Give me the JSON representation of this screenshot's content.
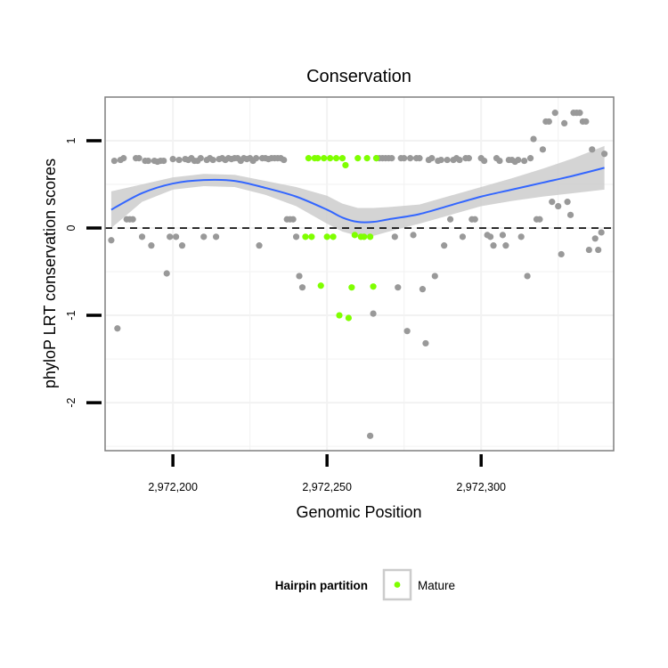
{
  "chart_data": {
    "type": "scatter",
    "title": "Conservation",
    "xlabel": "Genomic Position",
    "ylabel": "phyloP LRT conservation scores",
    "xlim": [
      2972178,
      2972343
    ],
    "ylim": [
      -2.55,
      1.5
    ],
    "x_ticks": [
      {
        "value": 2972200,
        "label": "2,972,200"
      },
      {
        "value": 2972250,
        "label": "2,972,250"
      },
      {
        "value": 2972300,
        "label": "2,972,300"
      }
    ],
    "y_ticks": [
      {
        "value": 1,
        "label": "1"
      },
      {
        "value": 0,
        "label": "0"
      },
      {
        "value": -1,
        "label": "-1"
      },
      {
        "value": -2,
        "label": "-2"
      }
    ],
    "reference_line": {
      "y": 0,
      "style": "dashed"
    },
    "grid": true,
    "colors": {
      "other_points": "#999999",
      "mature_points": "#7FFF00",
      "smooth_line": "#3366FF",
      "ribbon": "#CCCCCC",
      "panel_border": "#7f7f7f",
      "grid": "#f2f2f2"
    },
    "legend": {
      "title": "Hairpin partition",
      "position": "bottom",
      "entries": [
        {
          "label": "Mature",
          "series": "Mature"
        }
      ]
    },
    "series": [
      {
        "name": "Other",
        "points": [
          [
            2972180,
            -0.14
          ],
          [
            2972181,
            0.77
          ],
          [
            2972182,
            -1.15
          ],
          [
            2972183,
            0.78
          ],
          [
            2972184,
            0.8
          ],
          [
            2972185,
            0.1
          ],
          [
            2972186,
            0.1
          ],
          [
            2972187,
            0.1
          ],
          [
            2972188,
            0.8
          ],
          [
            2972189,
            0.8
          ],
          [
            2972190,
            -0.1
          ],
          [
            2972191,
            0.77
          ],
          [
            2972192,
            0.77
          ],
          [
            2972193,
            -0.2
          ],
          [
            2972194,
            0.77
          ],
          [
            2972195,
            0.76
          ],
          [
            2972196,
            0.77
          ],
          [
            2972197,
            0.77
          ],
          [
            2972198,
            -0.52
          ],
          [
            2972199,
            -0.1
          ],
          [
            2972200,
            0.79
          ],
          [
            2972201,
            -0.1
          ],
          [
            2972202,
            0.78
          ],
          [
            2972203,
            -0.2
          ],
          [
            2972204,
            0.79
          ],
          [
            2972205,
            0.78
          ],
          [
            2972206,
            0.8
          ],
          [
            2972207,
            0.77
          ],
          [
            2972208,
            0.77
          ],
          [
            2972209,
            0.8
          ],
          [
            2972210,
            -0.1
          ],
          [
            2972211,
            0.78
          ],
          [
            2972212,
            0.8
          ],
          [
            2972213,
            0.78
          ],
          [
            2972214,
            -0.1
          ],
          [
            2972215,
            0.79
          ],
          [
            2972216,
            0.8
          ],
          [
            2972217,
            0.78
          ],
          [
            2972218,
            0.8
          ],
          [
            2972219,
            0.79
          ],
          [
            2972220,
            0.8
          ],
          [
            2972221,
            0.8
          ],
          [
            2972222,
            0.77
          ],
          [
            2972223,
            0.8
          ],
          [
            2972224,
            0.79
          ],
          [
            2972225,
            0.8
          ],
          [
            2972226,
            0.77
          ],
          [
            2972227,
            0.8
          ],
          [
            2972228,
            -0.2
          ],
          [
            2972229,
            0.8
          ],
          [
            2972230,
            0.8
          ],
          [
            2972231,
            0.79
          ],
          [
            2972232,
            0.8
          ],
          [
            2972233,
            0.8
          ],
          [
            2972234,
            0.8
          ],
          [
            2972235,
            0.8
          ],
          [
            2972236,
            0.78
          ],
          [
            2972237,
            0.1
          ],
          [
            2972238,
            0.1
          ],
          [
            2972239,
            0.1
          ],
          [
            2972240,
            -0.1
          ],
          [
            2972241,
            -0.55
          ],
          [
            2972242,
            -0.68
          ],
          [
            2972264,
            -2.38
          ],
          [
            2972265,
            -0.98
          ],
          [
            2972266,
            0.8
          ],
          [
            2972267,
            0.8
          ],
          [
            2972268,
            0.8
          ],
          [
            2972269,
            0.8
          ],
          [
            2972270,
            0.8
          ],
          [
            2972271,
            0.8
          ],
          [
            2972272,
            -0.1
          ],
          [
            2972273,
            -0.68
          ],
          [
            2972274,
            0.8
          ],
          [
            2972275,
            0.8
          ],
          [
            2972276,
            -1.18
          ],
          [
            2972277,
            0.8
          ],
          [
            2972278,
            -0.08
          ],
          [
            2972279,
            0.8
          ],
          [
            2972280,
            0.8
          ],
          [
            2972281,
            -0.7
          ],
          [
            2972282,
            -1.32
          ],
          [
            2972283,
            0.78
          ],
          [
            2972284,
            0.8
          ],
          [
            2972285,
            -0.55
          ],
          [
            2972286,
            0.77
          ],
          [
            2972287,
            0.78
          ],
          [
            2972288,
            -0.2
          ],
          [
            2972289,
            0.78
          ],
          [
            2972290,
            0.1
          ],
          [
            2972291,
            0.78
          ],
          [
            2972292,
            0.8
          ],
          [
            2972293,
            0.78
          ],
          [
            2972294,
            -0.1
          ],
          [
            2972295,
            0.8
          ],
          [
            2972296,
            0.8
          ],
          [
            2972297,
            0.1
          ],
          [
            2972298,
            0.1
          ],
          [
            2972300,
            0.8
          ],
          [
            2972301,
            0.77
          ],
          [
            2972302,
            -0.08
          ],
          [
            2972303,
            -0.1
          ],
          [
            2972304,
            -0.2
          ],
          [
            2972305,
            0.8
          ],
          [
            2972306,
            0.77
          ],
          [
            2972307,
            -0.08
          ],
          [
            2972308,
            -0.2
          ],
          [
            2972309,
            0.78
          ],
          [
            2972310,
            0.78
          ],
          [
            2972311,
            0.76
          ],
          [
            2972312,
            0.78
          ],
          [
            2972313,
            -0.1
          ],
          [
            2972314,
            0.77
          ],
          [
            2972315,
            -0.55
          ],
          [
            2972316,
            0.8
          ],
          [
            2972317,
            1.02
          ],
          [
            2972318,
            0.1
          ],
          [
            2972319,
            0.1
          ],
          [
            2972320,
            0.9
          ],
          [
            2972321,
            1.22
          ],
          [
            2972322,
            1.22
          ],
          [
            2972323,
            0.3
          ],
          [
            2972324,
            1.32
          ],
          [
            2972325,
            0.25
          ],
          [
            2972326,
            -0.3
          ],
          [
            2972327,
            1.2
          ],
          [
            2972328,
            0.3
          ],
          [
            2972329,
            0.15
          ],
          [
            2972330,
            1.32
          ],
          [
            2972331,
            1.32
          ],
          [
            2972332,
            1.32
          ],
          [
            2972333,
            1.22
          ],
          [
            2972334,
            1.22
          ],
          [
            2972335,
            -0.25
          ],
          [
            2972336,
            0.9
          ],
          [
            2972337,
            -0.12
          ],
          [
            2972338,
            -0.25
          ],
          [
            2972339,
            -0.05
          ],
          [
            2972340,
            0.85
          ]
        ]
      },
      {
        "name": "Mature",
        "points": [
          [
            2972243,
            -0.1
          ],
          [
            2972244,
            0.8
          ],
          [
            2972245,
            -0.1
          ],
          [
            2972246,
            0.8
          ],
          [
            2972247,
            0.8
          ],
          [
            2972248,
            -0.66
          ],
          [
            2972249,
            0.8
          ],
          [
            2972250,
            -0.1
          ],
          [
            2972251,
            0.8
          ],
          [
            2972252,
            -0.1
          ],
          [
            2972253,
            0.8
          ],
          [
            2972254,
            -1.0
          ],
          [
            2972255,
            0.8
          ],
          [
            2972256,
            0.72
          ],
          [
            2972257,
            -1.03
          ],
          [
            2972258,
            -0.68
          ],
          [
            2972259,
            -0.08
          ],
          [
            2972260,
            0.8
          ],
          [
            2972261,
            -0.1
          ],
          [
            2972262,
            -0.1
          ],
          [
            2972263,
            0.8
          ],
          [
            2972264,
            -0.1
          ],
          [
            2972265,
            -0.67
          ],
          [
            2972266,
            0.8
          ]
        ]
      }
    ],
    "smooth": {
      "method": "loess",
      "x": [
        2972180,
        2972190,
        2972200,
        2972210,
        2972220,
        2972230,
        2972240,
        2972250,
        2972255,
        2972260,
        2972265,
        2972270,
        2972280,
        2972290,
        2972300,
        2972310,
        2972320,
        2972330,
        2972340
      ],
      "y": [
        0.21,
        0.4,
        0.51,
        0.55,
        0.54,
        0.46,
        0.36,
        0.21,
        0.12,
        0.07,
        0.07,
        0.1,
        0.16,
        0.26,
        0.36,
        0.44,
        0.52,
        0.6,
        0.69
      ],
      "lower": [
        0.0,
        0.3,
        0.44,
        0.48,
        0.47,
        0.38,
        0.25,
        0.05,
        -0.04,
        -0.09,
        -0.09,
        -0.04,
        0.05,
        0.15,
        0.25,
        0.31,
        0.36,
        0.4,
        0.44
      ],
      "upper": [
        0.42,
        0.5,
        0.58,
        0.62,
        0.61,
        0.54,
        0.47,
        0.37,
        0.28,
        0.23,
        0.23,
        0.24,
        0.27,
        0.37,
        0.47,
        0.57,
        0.68,
        0.8,
        0.94
      ]
    }
  }
}
